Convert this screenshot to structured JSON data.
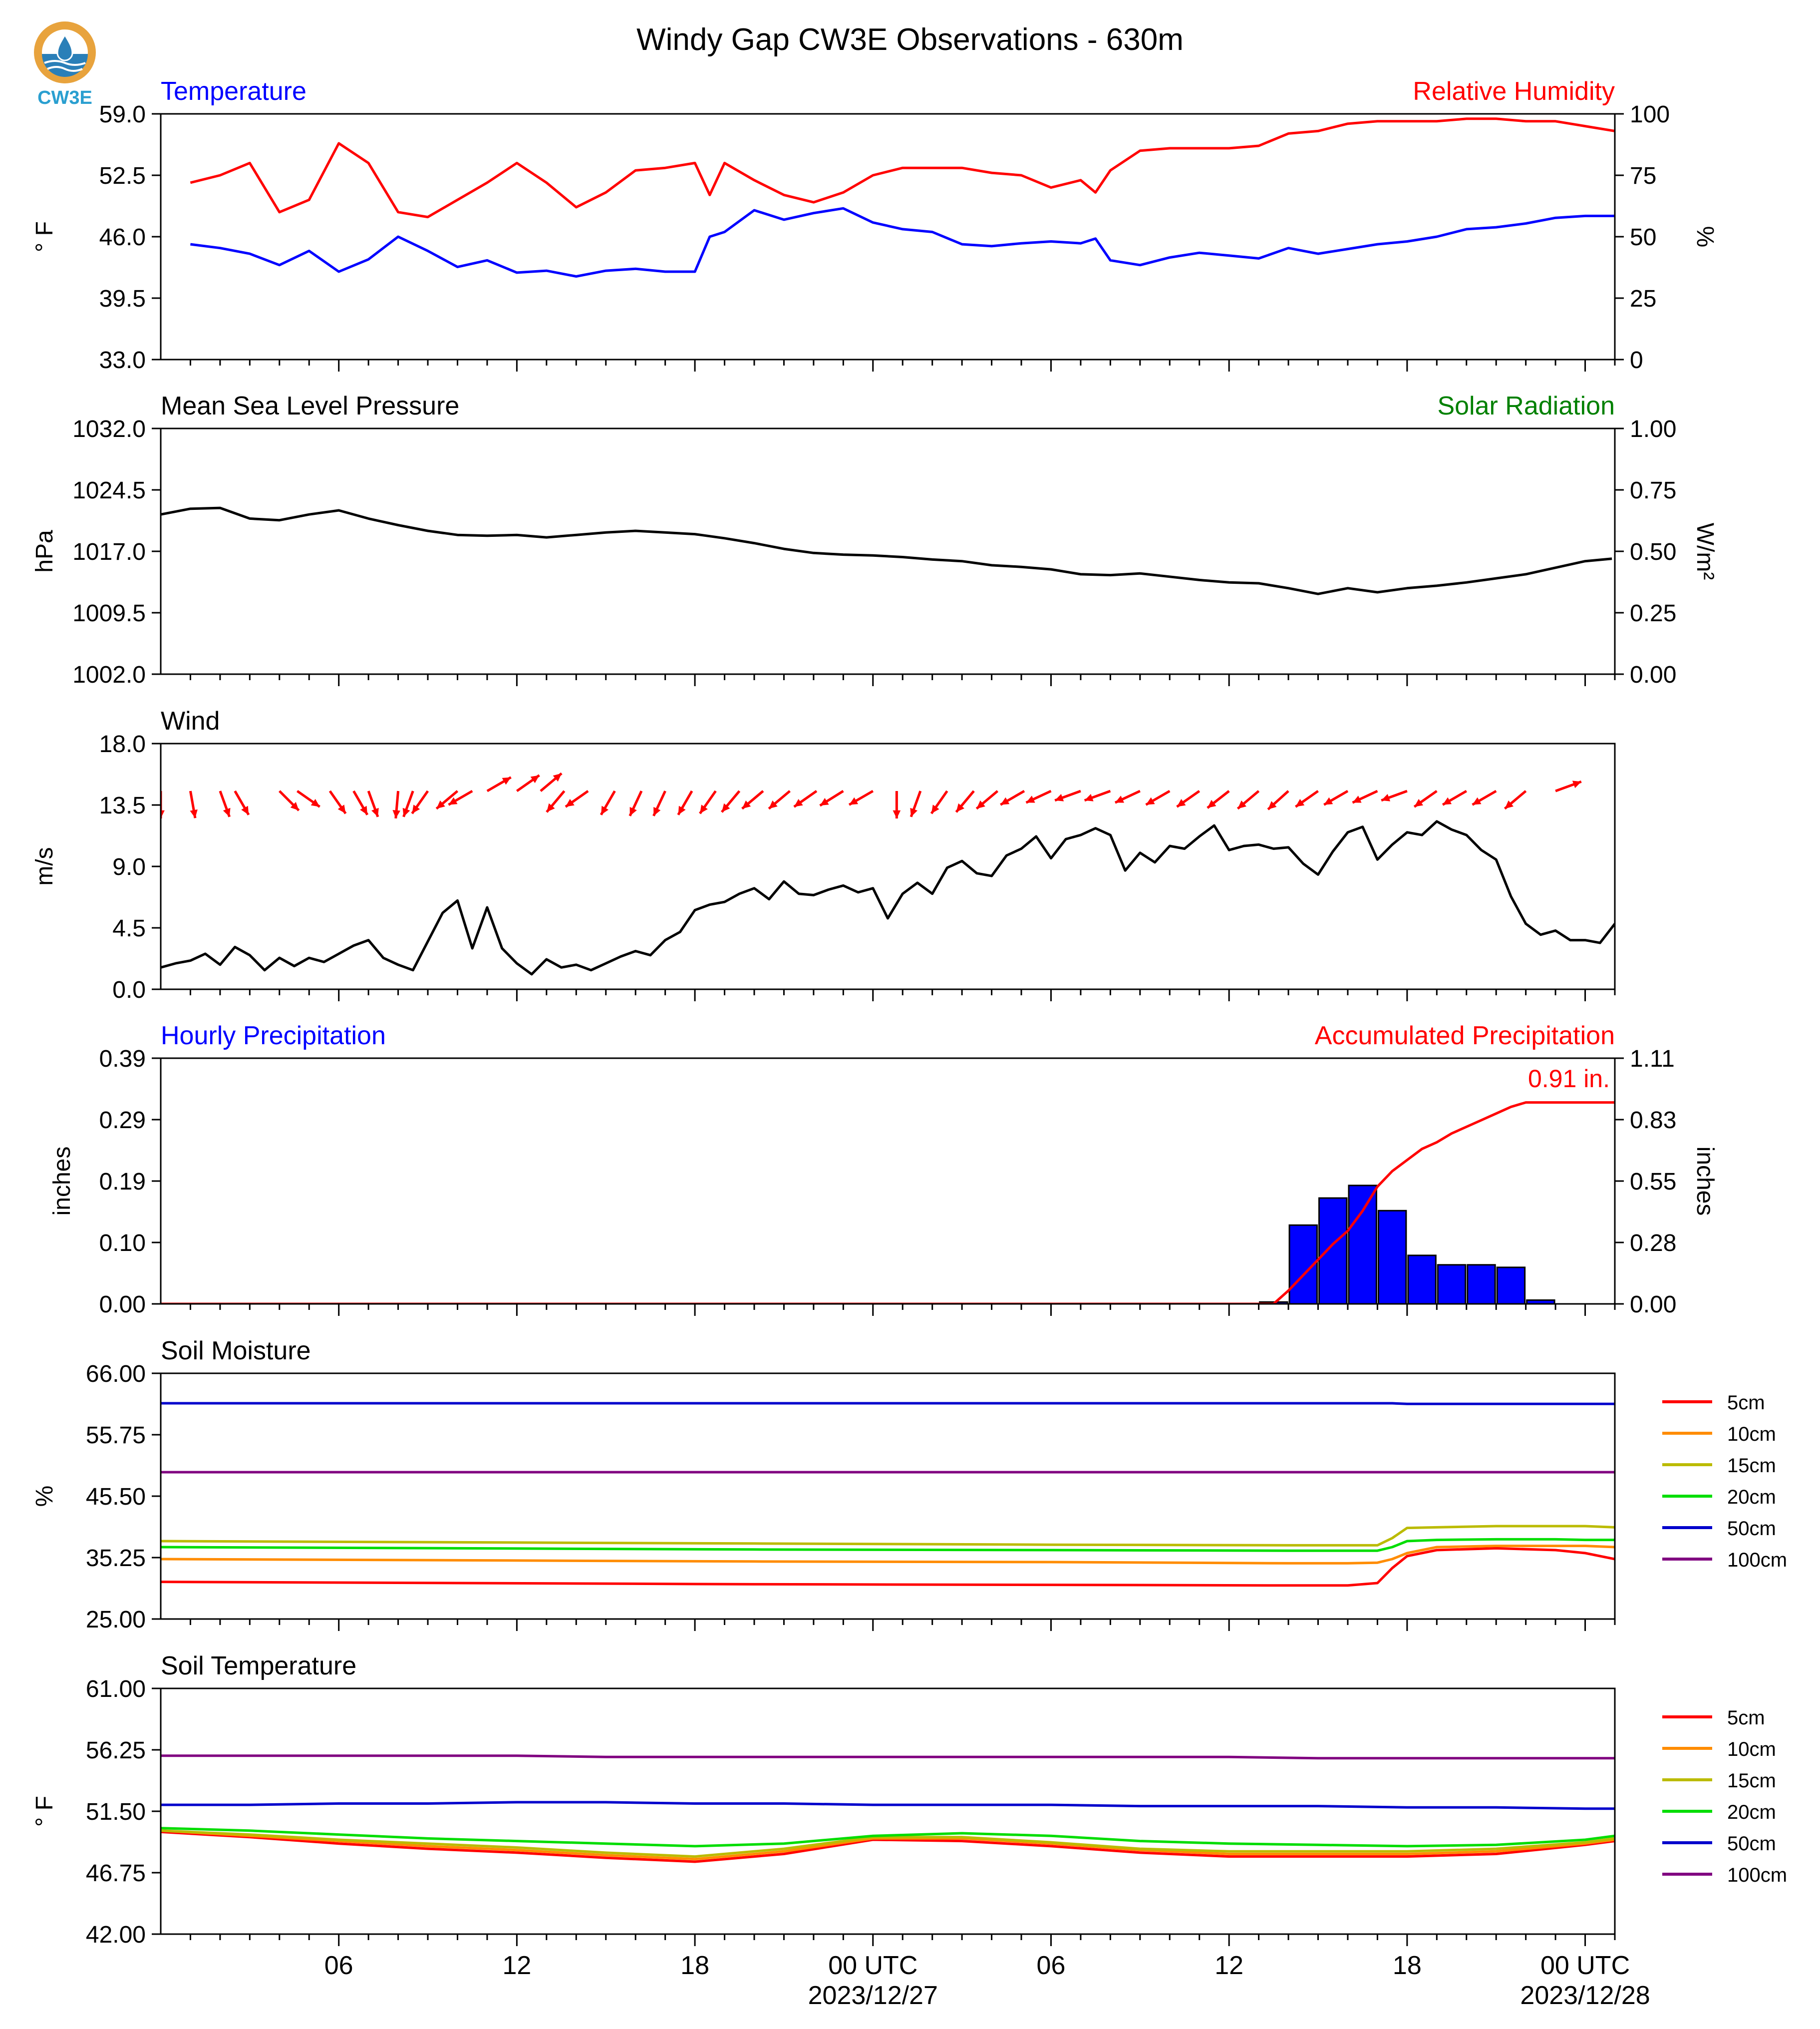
{
  "figure": {
    "title": "Windy Gap CW3E Observations - 630m",
    "logo_text": "CW3E",
    "xaxis": {
      "ticks": [
        {
          "hour": 6,
          "label": "06",
          "sublabel": ""
        },
        {
          "hour": 12,
          "label": "12",
          "sublabel": ""
        },
        {
          "hour": 18,
          "label": "18",
          "sublabel": ""
        },
        {
          "hour": 24,
          "label": "00 UTC",
          "sublabel": "2023/12/27"
        },
        {
          "hour": 30,
          "label": "06",
          "sublabel": ""
        },
        {
          "hour": 36,
          "label": "12",
          "sublabel": ""
        },
        {
          "hour": 42,
          "label": "18",
          "sublabel": ""
        },
        {
          "hour": 48,
          "label": "00 UTC",
          "sublabel": "2023/12/28"
        }
      ]
    }
  },
  "chart_data": [
    {
      "id": "temp_rh",
      "type": "line",
      "left_title": "Temperature",
      "left_title_color": "#0000ff",
      "right_title": "Relative Humidity",
      "right_title_color": "#ff0000",
      "ylabel": "° F",
      "ylabel_right": "%",
      "ylim": [
        33.0,
        59.0
      ],
      "yticks": [
        "59.0",
        "52.5",
        "46.0",
        "39.5",
        "33.0"
      ],
      "ylim_right": [
        0,
        100
      ],
      "yticks_right": [
        "100",
        "75",
        "50",
        "25",
        "0"
      ],
      "x_hours": [
        1,
        2,
        3,
        4,
        5,
        6,
        7,
        8,
        9,
        10,
        11,
        12,
        13,
        14,
        15,
        16,
        17,
        18,
        18.5,
        19,
        20,
        21,
        22,
        23,
        24,
        25,
        26,
        27,
        28,
        29,
        30,
        31,
        31.5,
        32,
        33,
        34,
        35,
        36,
        37,
        38,
        39,
        40,
        41,
        42,
        43,
        44,
        45,
        46,
        47,
        48,
        49
      ],
      "series": [
        {
          "name": "Temperature",
          "axis": "left",
          "color": "#0000ff",
          "values": [
            45.2,
            44.8,
            44.2,
            43.0,
            44.5,
            42.3,
            43.6,
            46.0,
            44.5,
            42.8,
            43.5,
            42.2,
            42.4,
            41.8,
            42.4,
            42.6,
            42.3,
            42.3,
            46.0,
            46.5,
            48.8,
            47.8,
            48.5,
            49.0,
            47.5,
            46.8,
            46.5,
            45.2,
            45.0,
            45.3,
            45.5,
            45.3,
            45.8,
            43.5,
            43.0,
            43.8,
            44.3,
            44.0,
            43.7,
            44.8,
            44.2,
            44.7,
            45.2,
            45.5,
            46.0,
            46.8,
            47.0,
            47.4,
            48.0,
            48.2,
            48.2
          ]
        },
        {
          "name": "Relative Humidity",
          "axis": "right",
          "color": "#ff0000",
          "values": [
            72,
            75,
            80,
            60,
            65,
            88,
            80,
            60,
            58,
            65,
            72,
            80,
            72,
            62,
            68,
            77,
            78,
            80,
            67,
            80,
            73,
            67,
            64,
            68,
            75,
            78,
            78,
            78,
            76,
            75,
            70,
            73,
            68,
            77,
            85,
            86,
            86,
            86,
            87,
            92,
            93,
            96,
            97,
            97,
            97,
            98,
            98,
            97,
            97,
            95,
            93
          ]
        }
      ]
    },
    {
      "id": "pressure_solar",
      "type": "line",
      "left_title": "Mean Sea Level Pressure",
      "left_title_color": "#000000",
      "right_title": "Solar Radiation",
      "right_title_color": "#008000",
      "ylabel": "hPa",
      "ylabel_right": "W/m²",
      "ylim": [
        1002.0,
        1032.0
      ],
      "yticks": [
        "1032.0",
        "1024.5",
        "1017.0",
        "1009.5",
        "1002.0"
      ],
      "ylim_right": [
        0.0,
        1.0
      ],
      "yticks_right": [
        "1.00",
        "0.75",
        "0.50",
        "0.25",
        "0.00"
      ],
      "x_hours": [
        0,
        1,
        2,
        3,
        4,
        5,
        6,
        7,
        8,
        9,
        10,
        11,
        12,
        13,
        14,
        15,
        16,
        17,
        18,
        19,
        20,
        21,
        22,
        23,
        24,
        25,
        26,
        27,
        28,
        29,
        30,
        31,
        32,
        33,
        34,
        35,
        36,
        37,
        38,
        39,
        40,
        41,
        42,
        43,
        44,
        45,
        46,
        47,
        48,
        48.9
      ],
      "series": [
        {
          "name": "Mean Sea Level Pressure",
          "axis": "left",
          "color": "#000000",
          "values": [
            1021.5,
            1022.2,
            1022.3,
            1021.0,
            1020.8,
            1021.5,
            1022.0,
            1021.0,
            1020.2,
            1019.5,
            1019.0,
            1018.9,
            1019.0,
            1018.7,
            1019.0,
            1019.3,
            1019.5,
            1019.3,
            1019.1,
            1018.6,
            1018.0,
            1017.3,
            1016.8,
            1016.6,
            1016.5,
            1016.3,
            1016.0,
            1015.8,
            1015.3,
            1015.1,
            1014.8,
            1014.2,
            1014.1,
            1014.3,
            1013.9,
            1013.5,
            1013.2,
            1013.1,
            1012.5,
            1011.8,
            1012.5,
            1012.0,
            1012.5,
            1012.8,
            1013.2,
            1013.7,
            1014.2,
            1015.0,
            1015.8,
            1016.1
          ]
        }
      ]
    },
    {
      "id": "wind",
      "type": "line",
      "left_title": "Wind",
      "left_title_color": "#000000",
      "ylabel": "m/s",
      "ylim": [
        0.0,
        18.0
      ],
      "yticks": [
        "18.0",
        "13.5",
        "9.0",
        "4.5",
        "0.0"
      ],
      "x_hours": [
        0,
        0.5,
        1,
        1.5,
        2,
        2.5,
        3,
        3.5,
        4,
        4.5,
        5,
        5.5,
        6,
        6.5,
        7,
        7.5,
        8,
        8.5,
        9,
        9.5,
        10,
        10.5,
        11,
        11.5,
        12,
        12.5,
        13,
        13.5,
        14,
        14.5,
        15,
        15.5,
        16,
        16.5,
        17,
        17.5,
        18,
        18.5,
        19,
        19.5,
        20,
        20.5,
        21,
        21.5,
        22,
        22.5,
        23,
        23.5,
        24,
        24.5,
        25,
        25.5,
        26,
        26.5,
        27,
        27.5,
        28,
        28.5,
        29,
        29.5,
        30,
        30.5,
        31,
        31.5,
        32,
        32.5,
        33,
        33.5,
        34,
        34.5,
        35,
        35.5,
        36,
        36.5,
        37,
        37.5,
        38,
        38.5,
        39,
        39.5,
        40,
        40.5,
        41,
        41.5,
        42,
        42.5,
        43,
        43.5,
        44,
        44.5,
        45,
        45.5,
        46,
        46.5,
        47,
        47.5,
        48,
        48.5,
        49
      ],
      "series": [
        {
          "name": "Wind Speed",
          "axis": "left",
          "color": "#000000",
          "values": [
            1.6,
            1.9,
            2.1,
            2.6,
            1.8,
            3.1,
            2.5,
            1.4,
            2.3,
            1.7,
            2.3,
            2.0,
            2.6,
            3.2,
            3.6,
            2.3,
            1.8,
            1.4,
            3.5,
            5.6,
            6.5,
            3.0,
            6.0,
            3.0,
            1.9,
            1.1,
            2.2,
            1.6,
            1.8,
            1.4,
            1.9,
            2.4,
            2.8,
            2.5,
            3.6,
            4.2,
            5.8,
            6.2,
            6.4,
            7.0,
            7.4,
            6.6,
            7.9,
            7.0,
            6.9,
            7.3,
            7.6,
            7.1,
            7.4,
            5.2,
            7.0,
            7.8,
            7.0,
            8.9,
            9.4,
            8.5,
            8.3,
            9.8,
            10.3,
            11.2,
            9.6,
            11.0,
            11.3,
            11.8,
            11.3,
            8.7,
            10.0,
            9.3,
            10.5,
            10.3,
            11.2,
            12.0,
            10.2,
            10.5,
            10.6,
            10.3,
            10.4,
            9.2,
            8.4,
            10.1,
            11.5,
            11.9,
            9.5,
            10.6,
            11.5,
            11.3,
            12.3,
            11.7,
            11.3,
            10.2,
            9.5,
            6.8,
            4.8,
            4.0,
            4.3,
            3.6,
            3.6,
            3.4,
            4.8
          ]
        }
      ],
      "barbs_hours": [
        0,
        1,
        2,
        2.5,
        4,
        4.6,
        5.7,
        6.5,
        7,
        8,
        8.5,
        9,
        10,
        10.5,
        11,
        12,
        12.8,
        13.6,
        14.4,
        15.3,
        16.2,
        17,
        17.9,
        18.7,
        19.5,
        20.3,
        21.2,
        22.1,
        23,
        24,
        24.8,
        25.6,
        26.5,
        27.4,
        28.2,
        29.1,
        30,
        31,
        32,
        33,
        34,
        35,
        36,
        37,
        38,
        39,
        40,
        41,
        42,
        43,
        44,
        45,
        46,
        47
      ],
      "barbs_dir_deg": [
        180,
        170,
        160,
        150,
        135,
        125,
        145,
        150,
        160,
        185,
        200,
        215,
        230,
        240,
        60,
        55,
        50,
        220,
        235,
        210,
        205,
        205,
        210,
        215,
        220,
        230,
        230,
        235,
        238,
        240,
        180,
        200,
        215,
        220,
        230,
        240,
        245,
        250,
        250,
        245,
        240,
        235,
        232,
        230,
        228,
        235,
        240,
        245,
        250,
        235,
        240,
        240,
        230,
        70
      ]
    },
    {
      "id": "precip",
      "type": "bar",
      "left_title": "Hourly Precipitation",
      "left_title_color": "#0000ff",
      "right_title": "Accumulated Precipitation",
      "right_title_color": "#ff0000",
      "ylabel": "inches",
      "ylabel_right": "inches",
      "ylim": [
        0.0,
        0.39
      ],
      "yticks": [
        "0.39",
        "0.29",
        "0.19",
        "0.10",
        "0.00"
      ],
      "ylim_right": [
        0.0,
        1.11
      ],
      "yticks_right": [
        "1.11",
        "0.83",
        "0.55",
        "0.28",
        "0.00"
      ],
      "annotation": "0.91 in.",
      "bar_hours": [
        37,
        38,
        39,
        40,
        41,
        42,
        43,
        44,
        45,
        46,
        47
      ],
      "series": [
        {
          "name": "Hourly Precipitation",
          "axis": "left",
          "color": "#0000ff",
          "values": [
            0.003,
            0.125,
            0.168,
            0.188,
            0.148,
            0.077,
            0.062,
            0.062,
            0.058,
            0.006,
            0.0
          ]
        },
        {
          "name": "Accumulated Precipitation",
          "axis": "right",
          "color": "#ff0000",
          "x_hours": [
            0,
            37.5,
            38,
            38.5,
            39,
            39.5,
            40,
            40.5,
            41,
            41.5,
            42,
            42.5,
            43,
            43.5,
            44,
            44.5,
            45,
            45.5,
            46,
            47,
            49
          ],
          "values": [
            0.0,
            0.0,
            0.06,
            0.13,
            0.2,
            0.27,
            0.33,
            0.42,
            0.53,
            0.6,
            0.65,
            0.7,
            0.73,
            0.77,
            0.8,
            0.83,
            0.86,
            0.89,
            0.91,
            0.91,
            0.91
          ]
        }
      ]
    },
    {
      "id": "soil_moisture",
      "type": "line",
      "left_title": "Soil Moisture",
      "left_title_color": "#000000",
      "ylabel": "%",
      "ylim": [
        25.0,
        66.0
      ],
      "yticks": [
        "66.00",
        "55.75",
        "45.50",
        "35.25",
        "25.00"
      ],
      "x_hours": [
        0,
        10,
        20,
        30,
        38,
        40,
        41,
        41.5,
        42,
        43,
        45,
        47,
        48,
        49
      ],
      "series": [
        {
          "name": "5cm",
          "color": "#ff0000",
          "values": [
            31.2,
            31.0,
            30.8,
            30.7,
            30.6,
            30.6,
            31.0,
            33.5,
            35.5,
            36.5,
            36.8,
            36.5,
            36.0,
            35.0
          ]
        },
        {
          "name": "10cm",
          "color": "#ff8c00",
          "values": [
            35.0,
            34.8,
            34.6,
            34.5,
            34.3,
            34.3,
            34.4,
            35.0,
            36.0,
            37.0,
            37.2,
            37.2,
            37.2,
            37.0
          ]
        },
        {
          "name": "15cm",
          "color": "#bbbb00",
          "values": [
            38.0,
            37.8,
            37.6,
            37.4,
            37.3,
            37.3,
            37.3,
            38.5,
            40.2,
            40.3,
            40.5,
            40.5,
            40.5,
            40.3
          ]
        },
        {
          "name": "20cm",
          "color": "#00dd00",
          "values": [
            37.0,
            36.8,
            36.6,
            36.5,
            36.4,
            36.4,
            36.4,
            37.0,
            38.0,
            38.2,
            38.3,
            38.3,
            38.2,
            38.2
          ]
        },
        {
          "name": "50cm",
          "color": "#0000cc",
          "values": [
            61.0,
            61.0,
            61.0,
            61.0,
            61.0,
            61.0,
            61.0,
            61.0,
            60.9,
            60.9,
            60.9,
            60.9,
            60.9,
            60.9
          ]
        },
        {
          "name": "100cm",
          "color": "#800080",
          "values": [
            49.5,
            49.5,
            49.5,
            49.5,
            49.5,
            49.5,
            49.5,
            49.5,
            49.5,
            49.5,
            49.5,
            49.5,
            49.5,
            49.5
          ]
        }
      ],
      "legend": "right"
    },
    {
      "id": "soil_temp",
      "type": "line",
      "left_title": "Soil Temperature",
      "left_title_color": "#000000",
      "ylabel": "° F",
      "ylim": [
        42.0,
        61.0
      ],
      "yticks": [
        "61.00",
        "56.25",
        "51.50",
        "46.75",
        "42.00"
      ],
      "x_hours": [
        0,
        3,
        6,
        9,
        12,
        15,
        18,
        21,
        24,
        27,
        30,
        33,
        36,
        39,
        42,
        45,
        48,
        49
      ],
      "series": [
        {
          "name": "5cm",
          "color": "#ff0000",
          "values": [
            49.9,
            49.5,
            49.0,
            48.6,
            48.3,
            47.9,
            47.6,
            48.2,
            49.3,
            49.2,
            48.8,
            48.3,
            48.0,
            48.0,
            48.0,
            48.2,
            48.9,
            49.2
          ]
        },
        {
          "name": "10cm",
          "color": "#ff8c00",
          "values": [
            50.0,
            49.6,
            49.2,
            48.8,
            48.5,
            48.1,
            47.8,
            48.4,
            49.4,
            49.4,
            49.0,
            48.5,
            48.2,
            48.2,
            48.2,
            48.4,
            49.0,
            49.3
          ]
        },
        {
          "name": "15cm",
          "color": "#bbbb00",
          "values": [
            50.0,
            49.7,
            49.3,
            49.0,
            48.7,
            48.3,
            48.0,
            48.6,
            49.5,
            49.5,
            49.1,
            48.6,
            48.4,
            48.4,
            48.4,
            48.6,
            49.1,
            49.4
          ]
        },
        {
          "name": "20cm",
          "color": "#00dd00",
          "values": [
            50.2,
            50.0,
            49.7,
            49.4,
            49.2,
            49.0,
            48.8,
            49.0,
            49.6,
            49.8,
            49.6,
            49.2,
            49.0,
            48.9,
            48.8,
            48.9,
            49.3,
            49.6
          ]
        },
        {
          "name": "50cm",
          "color": "#0000cc",
          "values": [
            52.0,
            52.0,
            52.1,
            52.1,
            52.2,
            52.2,
            52.1,
            52.1,
            52.0,
            52.0,
            52.0,
            51.9,
            51.9,
            51.9,
            51.8,
            51.8,
            51.7,
            51.7
          ]
        },
        {
          "name": "100cm",
          "color": "#800080",
          "values": [
            55.8,
            55.8,
            55.8,
            55.8,
            55.8,
            55.7,
            55.7,
            55.7,
            55.7,
            55.7,
            55.7,
            55.7,
            55.7,
            55.6,
            55.6,
            55.6,
            55.6,
            55.6
          ]
        }
      ],
      "legend": "right"
    }
  ]
}
